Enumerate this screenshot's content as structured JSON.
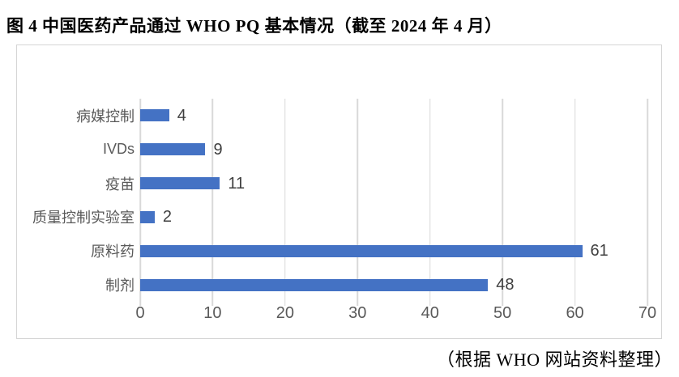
{
  "title": "图 4 中国医药产品通过 WHO PQ 基本情况（截至 2024 年 4 月）",
  "source_note": "（根据 WHO 网站资料整理）",
  "colors": {
    "bar": "#4472c4",
    "gridline": "#d9d9d9",
    "axis_label": "#595959",
    "data_label": "#3f3f3f",
    "frame_border": "#d5d5d5"
  },
  "chart_data": {
    "type": "bar",
    "orientation": "horizontal",
    "title": "图 4 中国医药产品通过 WHO PQ 基本情况（截至 2024 年 4 月）",
    "categories": [
      "病媒控制",
      "IVDs",
      "疫苗",
      "质量控制实验室",
      "原料药",
      "制剂"
    ],
    "values": [
      4,
      9,
      11,
      2,
      61,
      48
    ],
    "data_labels": [
      "4",
      "9",
      "11",
      "2",
      "61",
      "48"
    ],
    "x_ticks": [
      "0",
      "10",
      "20",
      "30",
      "40",
      "50",
      "60",
      "70"
    ],
    "xlim": [
      0,
      70
    ],
    "grid": true,
    "legend": "none",
    "source_note": "（根据 WHO 网站资料整理）"
  }
}
